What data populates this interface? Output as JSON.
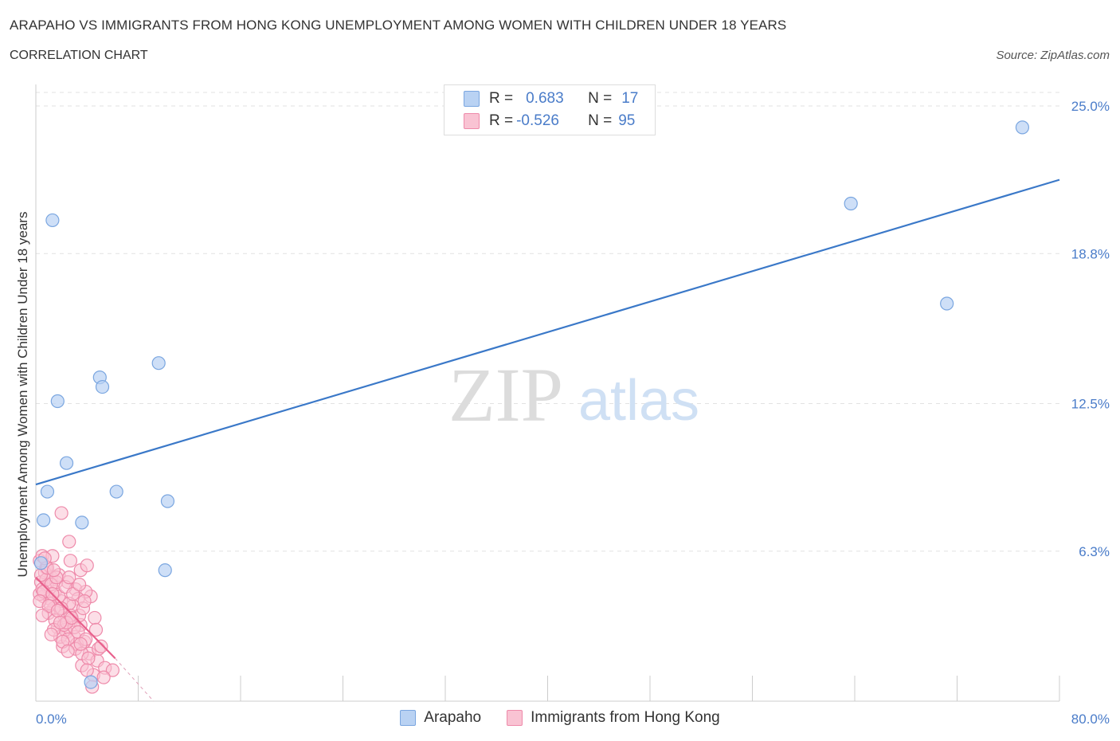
{
  "title": "ARAPAHO VS IMMIGRANTS FROM HONG KONG UNEMPLOYMENT AMONG WOMEN WITH CHILDREN UNDER 18 YEARS",
  "subtitle": "CORRELATION CHART",
  "source": "Source: ZipAtlas.com",
  "watermark": {
    "zip": "ZIP",
    "atlas": "atlas"
  },
  "legend_stats": {
    "arapaho": {
      "r_label": "R =",
      "r_value": "0.683",
      "n_label": "N =",
      "n_value": "17"
    },
    "hongkong": {
      "r_label": "R =",
      "r_value": "-0.526",
      "n_label": "N =",
      "n_value": "95"
    }
  },
  "colors": {
    "arapaho_fill": "#b9d2f3",
    "arapaho_stroke": "#7aa6e0",
    "arapaho_line": "#3a78c8",
    "hongkong_fill": "#f9c3d3",
    "hongkong_stroke": "#ee8aaa",
    "hongkong_line": "#e8608c",
    "tick_text": "#4a7cc9",
    "grid": "#e2e2e2"
  },
  "chart_data": {
    "type": "scatter",
    "title": "ARAPAHO VS IMMIGRANTS FROM HONG KONG UNEMPLOYMENT AMONG WOMEN WITH CHILDREN UNDER 18 YEARS",
    "xlabel": "",
    "ylabel": "Unemployment Among Women with Children Under 18 years",
    "xlim": [
      0,
      80
    ],
    "ylim": [
      0,
      25
    ],
    "y_ticks": [
      6.3,
      12.5,
      18.8,
      25.0
    ],
    "y_tick_labels": [
      "6.3%",
      "12.5%",
      "18.8%",
      "25.0%"
    ],
    "x_tick_labels": [
      "0.0%",
      "80.0%"
    ],
    "grid": true,
    "legend_position": "top-center",
    "series": [
      {
        "name": "Arapaho",
        "points": [
          [
            1.3,
            20.2
          ],
          [
            1.7,
            12.6
          ],
          [
            2.4,
            10.0
          ],
          [
            0.9,
            8.8
          ],
          [
            0.6,
            7.6
          ],
          [
            5.0,
            13.6
          ],
          [
            5.2,
            13.2
          ],
          [
            9.6,
            14.2
          ],
          [
            6.3,
            8.8
          ],
          [
            10.3,
            8.4
          ],
          [
            3.6,
            7.5
          ],
          [
            10.1,
            5.5
          ],
          [
            4.3,
            0.8
          ],
          [
            63.7,
            20.9
          ],
          [
            71.2,
            16.7
          ],
          [
            77.1,
            24.1
          ],
          [
            0.4,
            5.8
          ]
        ],
        "trend": [
          [
            0,
            9.1
          ],
          [
            80,
            21.9
          ]
        ]
      },
      {
        "name": "Immigrants from Hong Kong",
        "points": [
          [
            0.3,
            5.9
          ],
          [
            0.5,
            6.1
          ],
          [
            0.8,
            5.6
          ],
          [
            1.2,
            5.2
          ],
          [
            0.4,
            5.0
          ],
          [
            0.9,
            4.8
          ],
          [
            1.5,
            4.6
          ],
          [
            0.6,
            4.4
          ],
          [
            1.1,
            4.3
          ],
          [
            2.0,
            4.2
          ],
          [
            0.3,
            4.5
          ],
          [
            1.8,
            5.3
          ],
          [
            2.5,
            5.0
          ],
          [
            3.1,
            4.7
          ],
          [
            1.4,
            3.9
          ],
          [
            2.2,
            3.6
          ],
          [
            2.8,
            3.4
          ],
          [
            3.5,
            3.2
          ],
          [
            1.0,
            3.7
          ],
          [
            1.7,
            3.1
          ],
          [
            2.4,
            2.9
          ],
          [
            3.0,
            2.7
          ],
          [
            3.8,
            2.5
          ],
          [
            2.1,
            2.3
          ],
          [
            4.2,
            2.0
          ],
          [
            4.8,
            1.7
          ],
          [
            5.4,
            1.4
          ],
          [
            3.6,
            1.5
          ],
          [
            4.5,
            1.1
          ],
          [
            6.0,
            1.3
          ],
          [
            2.0,
            7.9
          ],
          [
            2.6,
            6.7
          ],
          [
            1.3,
            6.1
          ],
          [
            2.7,
            5.9
          ],
          [
            3.5,
            5.5
          ],
          [
            4.0,
            5.7
          ],
          [
            4.3,
            4.4
          ],
          [
            3.9,
            4.6
          ],
          [
            3.3,
            4.3
          ],
          [
            0.7,
            5.4
          ],
          [
            1.6,
            5.0
          ],
          [
            2.9,
            4.0
          ],
          [
            3.4,
            3.6
          ],
          [
            4.6,
            3.5
          ],
          [
            2.3,
            3.0
          ],
          [
            1.9,
            2.7
          ],
          [
            3.2,
            2.4
          ],
          [
            4.9,
            2.2
          ],
          [
            5.1,
            2.3
          ],
          [
            5.3,
            1.0
          ],
          [
            4.4,
            0.6
          ],
          [
            0.5,
            4.7
          ],
          [
            0.8,
            5.1
          ],
          [
            1.2,
            4.9
          ],
          [
            1.8,
            4.4
          ],
          [
            2.6,
            4.1
          ],
          [
            3.7,
            3.9
          ],
          [
            1.5,
            3.4
          ],
          [
            2.2,
            3.2
          ],
          [
            2.7,
            3.6
          ],
          [
            3.0,
            3.1
          ],
          [
            1.1,
            4.1
          ],
          [
            1.4,
            3.0
          ],
          [
            2.5,
            2.6
          ],
          [
            3.1,
            2.2
          ],
          [
            3.6,
            2.0
          ],
          [
            4.1,
            1.8
          ],
          [
            0.4,
            5.3
          ],
          [
            0.9,
            5.6
          ],
          [
            1.6,
            5.2
          ],
          [
            2.3,
            4.8
          ],
          [
            2.9,
            4.5
          ],
          [
            3.4,
            4.9
          ],
          [
            0.6,
            4.6
          ],
          [
            1.3,
            4.5
          ],
          [
            2.0,
            3.9
          ],
          [
            2.4,
            3.3
          ],
          [
            3.3,
            2.9
          ],
          [
            0.3,
            4.2
          ],
          [
            1.0,
            4.0
          ],
          [
            1.7,
            3.8
          ],
          [
            2.8,
            3.5
          ],
          [
            3.9,
            2.6
          ],
          [
            1.2,
            2.8
          ],
          [
            2.1,
            2.5
          ],
          [
            3.5,
            2.4
          ],
          [
            0.7,
            6.0
          ],
          [
            1.4,
            5.5
          ],
          [
            2.6,
            5.2
          ],
          [
            3.8,
            4.2
          ],
          [
            4.7,
            3.0
          ],
          [
            0.5,
            3.6
          ],
          [
            1.9,
            3.3
          ],
          [
            2.5,
            2.1
          ],
          [
            4.0,
            1.3
          ]
        ],
        "trend": [
          [
            0,
            5.2
          ],
          [
            6.2,
            1.8
          ]
        ],
        "trend_dashed": [
          [
            6.2,
            1.8
          ],
          [
            9.2,
            0.0
          ]
        ]
      }
    ]
  },
  "bottom_legend": {
    "arapaho": "Arapaho",
    "hongkong": "Immigrants from Hong Kong"
  }
}
